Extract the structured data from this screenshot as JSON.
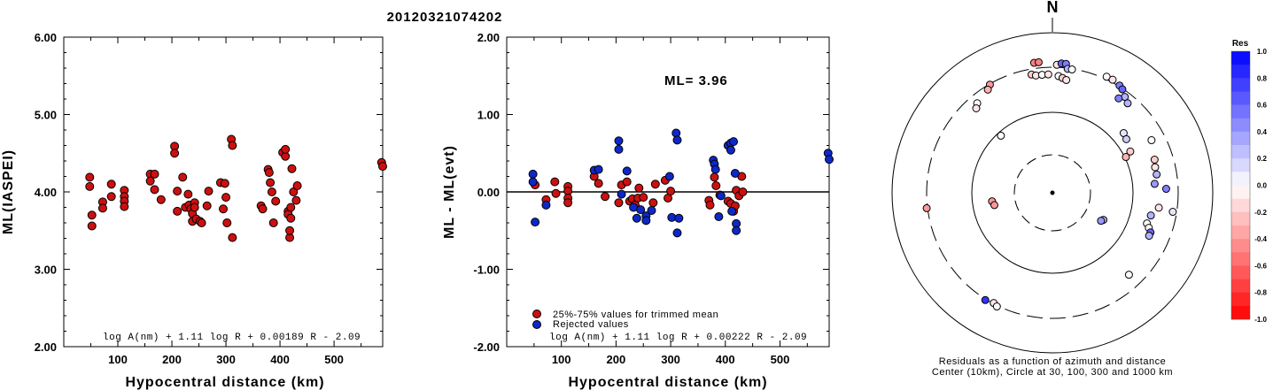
{
  "title": "20120321074202",
  "colors": {
    "red": "#cc1010",
    "blue": "#0d28c8"
  },
  "chart_data": [
    {
      "type": "scatter",
      "xlabel": "Hypocentral distance (km)",
      "ylabel": "ML(IASPEI)",
      "xlim": [
        0,
        590
      ],
      "ylim": [
        2.0,
        6.0
      ],
      "xticks": [
        "100",
        "200",
        "300",
        "400",
        "500"
      ],
      "yticks": [
        "2.00",
        "3.00",
        "4.00",
        "5.00",
        "6.00"
      ],
      "formula": "log A(nm) + 1.11 log R + 0.00189 R - 2.09",
      "points": [
        [
          48,
          4.19
        ],
        [
          48,
          4.07
        ],
        [
          52,
          3.7
        ],
        [
          52,
          3.56
        ],
        [
          72,
          3.87
        ],
        [
          72,
          3.79
        ],
        [
          88,
          4.1
        ],
        [
          88,
          3.94
        ],
        [
          112,
          4.02
        ],
        [
          112,
          3.94
        ],
        [
          112,
          3.88
        ],
        [
          112,
          3.81
        ],
        [
          160,
          4.23
        ],
        [
          160,
          4.14
        ],
        [
          168,
          4.23
        ],
        [
          168,
          4.03
        ],
        [
          180,
          3.9
        ],
        [
          205,
          4.59
        ],
        [
          205,
          4.5
        ],
        [
          210,
          4.01
        ],
        [
          210,
          3.75
        ],
        [
          220,
          4.19
        ],
        [
          225,
          3.8
        ],
        [
          230,
          3.97
        ],
        [
          232,
          3.83
        ],
        [
          235,
          3.78
        ],
        [
          238,
          3.62
        ],
        [
          238,
          3.72
        ],
        [
          242,
          3.86
        ],
        [
          242,
          3.8
        ],
        [
          245,
          3.65
        ],
        [
          252,
          3.62
        ],
        [
          255,
          3.6
        ],
        [
          265,
          3.82
        ],
        [
          268,
          4.01
        ],
        [
          290,
          4.12
        ],
        [
          295,
          3.78
        ],
        [
          298,
          4.11
        ],
        [
          300,
          3.93
        ],
        [
          302,
          3.6
        ],
        [
          310,
          4.68
        ],
        [
          312,
          4.6
        ],
        [
          312,
          3.41
        ],
        [
          365,
          3.82
        ],
        [
          368,
          3.78
        ],
        [
          378,
          4.29
        ],
        [
          380,
          4.25
        ],
        [
          382,
          4.12
        ],
        [
          385,
          4.0
        ],
        [
          388,
          3.6
        ],
        [
          392,
          3.88
        ],
        [
          405,
          4.51
        ],
        [
          410,
          4.46
        ],
        [
          410,
          4.55
        ],
        [
          415,
          3.75
        ],
        [
          415,
          3.71
        ],
        [
          418,
          3.41
        ],
        [
          418,
          3.5
        ],
        [
          420,
          3.66
        ],
        [
          420,
          3.8
        ],
        [
          422,
          4.3
        ],
        [
          425,
          4.0
        ],
        [
          430,
          3.89
        ],
        [
          432,
          4.08
        ],
        [
          588,
          4.38
        ],
        [
          590,
          4.33
        ]
      ]
    },
    {
      "type": "scatter",
      "xlabel": "Hypocentral distance (km)",
      "ylabel": "ML - ML(evt)",
      "xlim": [
        0,
        590
      ],
      "ylim": [
        -2.0,
        2.0
      ],
      "xticks": [
        "100",
        "200",
        "300",
        "400",
        "500"
      ],
      "yticks": [
        "-2.00",
        "-1.00",
        "0.00",
        "1.00",
        "2.00"
      ],
      "annotation": "ML= 3.96",
      "legend": [
        "25%-75% values for trimmed mean",
        "Rejected values"
      ],
      "formula": "log A(nm) + 1.11 log R + 0.00222 R - 2.09",
      "series": [
        {
          "color": "red",
          "points": [
            [
              52,
              0.09
            ],
            [
              72,
              -0.1
            ],
            [
              88,
              0.13
            ],
            [
              90,
              -0.02
            ],
            [
              112,
              0.07
            ],
            [
              112,
              0.01
            ],
            [
              112,
              -0.08
            ],
            [
              112,
              -0.14
            ],
            [
              160,
              0.2
            ],
            [
              168,
              0.11
            ],
            [
              180,
              -0.06
            ],
            [
              205,
              -0.14
            ],
            [
              210,
              0.09
            ],
            [
              220,
              0.13
            ],
            [
              225,
              -0.12
            ],
            [
              230,
              -0.09
            ],
            [
              235,
              -0.17
            ],
            [
              240,
              -0.08
            ],
            [
              242,
              0.05
            ],
            [
              250,
              -0.07
            ],
            [
              268,
              -0.14
            ],
            [
              272,
              0.1
            ],
            [
              290,
              0.15
            ],
            [
              295,
              -0.08
            ],
            [
              300,
              0.01
            ],
            [
              370,
              -0.11
            ],
            [
              372,
              -0.17
            ],
            [
              380,
              0.19
            ],
            [
              383,
              0.08
            ],
            [
              390,
              -0.04
            ],
            [
              405,
              -0.12
            ],
            [
              410,
              -0.15
            ],
            [
              415,
              -0.25
            ],
            [
              418,
              -0.18
            ],
            [
              420,
              0.02
            ],
            [
              425,
              -0.05
            ],
            [
              430,
              0.2
            ],
            [
              432,
              0.0
            ]
          ]
        },
        {
          "color": "blue",
          "points": [
            [
              48,
              0.23
            ],
            [
              48,
              0.13
            ],
            [
              52,
              -0.39
            ],
            [
              72,
              -0.17
            ],
            [
              160,
              0.28
            ],
            [
              168,
              0.29
            ],
            [
              205,
              0.66
            ],
            [
              205,
              0.55
            ],
            [
              210,
              -0.03
            ],
            [
              220,
              0.27
            ],
            [
              232,
              -0.2
            ],
            [
              238,
              -0.34
            ],
            [
              245,
              -0.23
            ],
            [
              255,
              -0.31
            ],
            [
              255,
              -0.37
            ],
            [
              265,
              -0.24
            ],
            [
              298,
              0.2
            ],
            [
              302,
              -0.33
            ],
            [
              310,
              0.76
            ],
            [
              312,
              0.67
            ],
            [
              312,
              -0.53
            ],
            [
              315,
              -0.34
            ],
            [
              378,
              0.41
            ],
            [
              380,
              0.36
            ],
            [
              382,
              0.29
            ],
            [
              388,
              -0.32
            ],
            [
              392,
              -0.05
            ],
            [
              405,
              0.6
            ],
            [
              410,
              0.63
            ],
            [
              410,
              0.54
            ],
            [
              412,
              -0.25
            ],
            [
              415,
              0.65
            ],
            [
              418,
              0.24
            ],
            [
              420,
              -0.41
            ],
            [
              420,
              -0.5
            ],
            [
              588,
              0.5
            ],
            [
              590,
              0.42
            ]
          ]
        }
      ]
    },
    {
      "type": "polar-residuals",
      "north_label": "N",
      "caption_line1": "Residuals as a function of azimuth and distance",
      "caption_line2": "Center (10km), Circle at 30, 100, 300 and 1000 km",
      "colorbar_title": "Res",
      "colorbar_ticks": [
        "1.0",
        "0.8",
        "0.6",
        "0.4",
        "0.2",
        "0.0",
        "-0.2",
        "-0.4",
        "-0.6",
        "-0.8",
        "-1.0"
      ],
      "stations": [
        [
          -8,
          0.82,
          -0.5
        ],
        [
          -6,
          0.82,
          -0.5
        ],
        [
          -10,
          0.75,
          -0.2
        ],
        [
          -8,
          0.74,
          -0.1
        ],
        [
          -5,
          0.74,
          0.0
        ],
        [
          -2,
          0.74,
          -0.1
        ],
        [
          2,
          0.8,
          -0.1
        ],
        [
          4,
          0.81,
          0.6
        ],
        [
          6,
          0.81,
          0.5
        ],
        [
          7,
          0.78,
          0.3
        ],
        [
          9,
          0.78,
          0.0
        ],
        [
          3,
          0.73,
          0.0
        ],
        [
          5,
          0.72,
          -0.2
        ],
        [
          7,
          0.71,
          -0.1
        ],
        [
          -30,
          0.78,
          -0.4
        ],
        [
          -32,
          0.76,
          -0.3
        ],
        [
          -40,
          0.73,
          0.0
        ],
        [
          -42,
          0.71,
          -0.1
        ],
        [
          -42,
          0.48,
          0.0
        ],
        [
          25,
          0.8,
          0.0
        ],
        [
          28,
          0.8,
          -0.1
        ],
        [
          32,
          0.79,
          0.5
        ],
        [
          34,
          0.78,
          0.6
        ],
        [
          37,
          0.75,
          0.3
        ],
        [
          35,
          0.72,
          0.5
        ],
        [
          40,
          0.73,
          0.3
        ],
        [
          50,
          0.58,
          0.1
        ],
        [
          54,
          0.57,
          0.2
        ],
        [
          62,
          0.55,
          -0.2
        ],
        [
          64,
          0.51,
          -0.3
        ],
        [
          62,
          0.7,
          0.0
        ],
        [
          72,
          0.67,
          -0.2
        ],
        [
          76,
          0.66,
          -0.1
        ],
        [
          80,
          0.66,
          0.3
        ],
        [
          85,
          0.64,
          0.4
        ],
        [
          88,
          0.71,
          0.5
        ],
        [
          98,
          0.67,
          -0.1
        ],
        [
          103,
          0.63,
          0.3
        ],
        [
          108,
          0.62,
          0.0
        ],
        [
          110,
          0.64,
          0.0
        ],
        [
          112,
          0.66,
          0.6
        ],
        [
          114,
          0.66,
          0.3
        ],
        [
          99,
          0.76,
          0.1
        ],
        [
          118,
          0.36,
          0.3
        ],
        [
          120,
          0.35,
          0.4
        ],
        [
          137,
          0.7,
          0.0
        ],
        [
          -98,
          0.38,
          -0.4
        ],
        [
          -102,
          0.37,
          -0.4
        ],
        [
          -97,
          0.79,
          -0.4
        ],
        [
          -148,
          0.79,
          0.8
        ],
        [
          -152,
          0.78,
          -0.1
        ],
        [
          -154,
          0.79,
          0.0
        ]
      ]
    }
  ]
}
